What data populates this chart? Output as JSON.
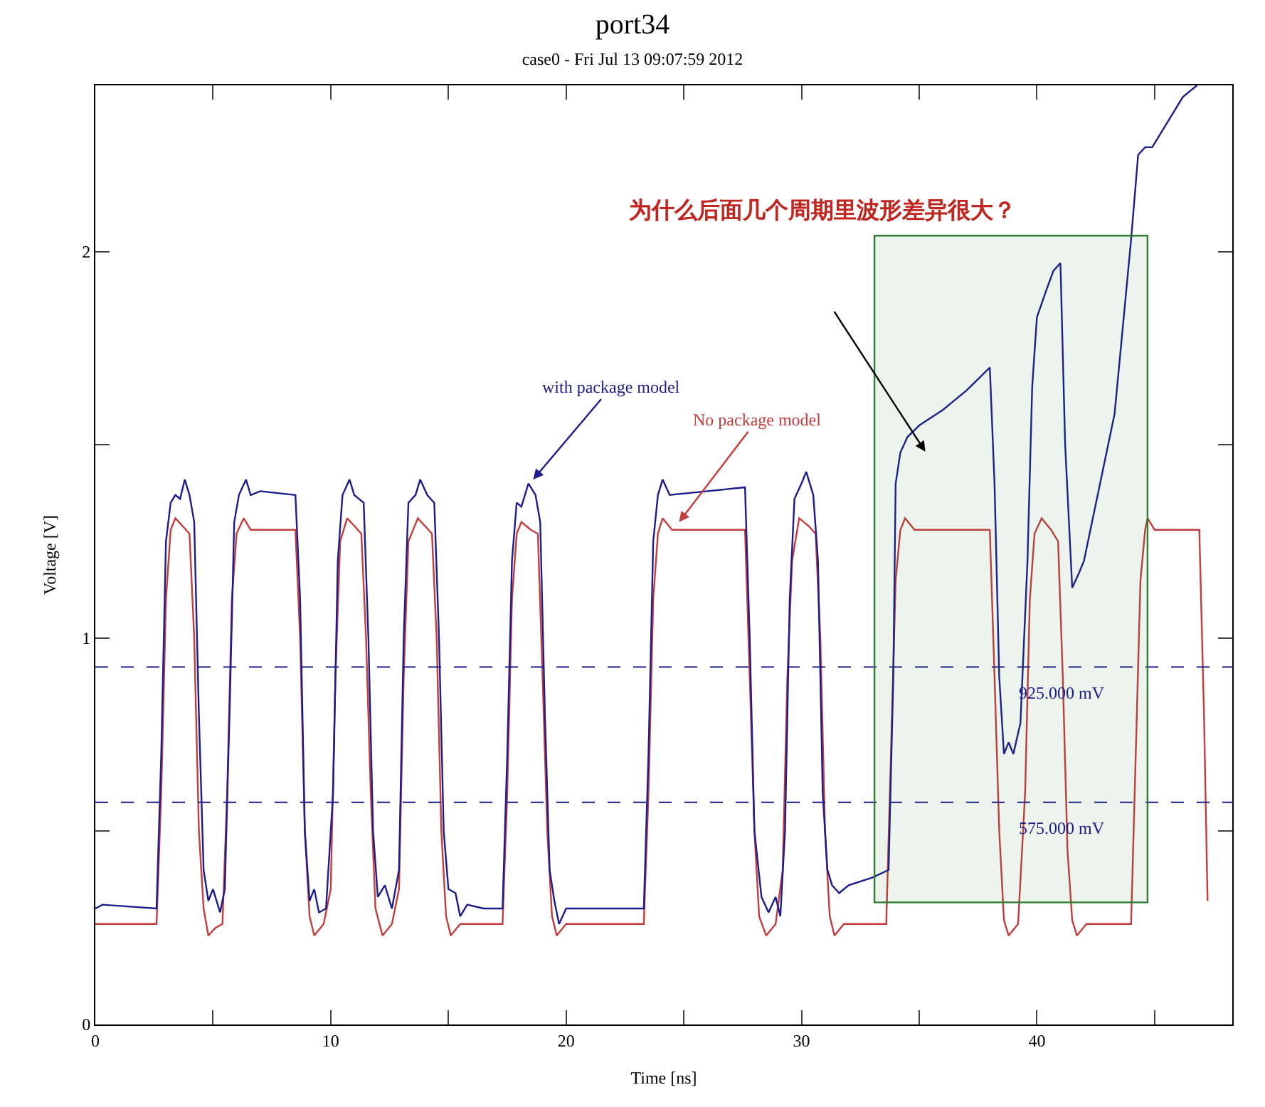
{
  "chart_data": {
    "type": "line",
    "title": "port34",
    "subtitle": "case0 - Fri Jul 13 09:07:59 2012",
    "xlabel": "Time [ns]",
    "ylabel": "Voltage [V]",
    "xlim": [
      0,
      48.3
    ],
    "ylim": [
      0,
      2.43
    ],
    "xticks": [
      0,
      {
        "value": 5,
        "label": null
      },
      10,
      {
        "value": 15,
        "label": null
      },
      20,
      {
        "value": 25,
        "label": null
      },
      30,
      {
        "value": 35,
        "label": null
      },
      40,
      {
        "value": 45,
        "label": null
      }
    ],
    "yticks": [
      0,
      {
        "value": 0.5,
        "label": null
      },
      1,
      {
        "value": 1.5,
        "label": null
      },
      2
    ],
    "marker": "none",
    "line_style": "solid",
    "series": [
      {
        "color": "#c43c3c",
        "x": [
          0,
          2.6,
          2.8,
          3.0,
          3.2,
          3.4,
          3.7,
          4.0,
          4.2,
          4.4,
          4.6,
          4.8,
          5.1,
          5.4,
          5.6,
          5.8,
          6.0,
          6.3,
          6.6,
          8.5,
          8.7,
          8.9,
          9.1,
          9.3,
          9.7,
          10.0,
          10.2,
          10.4,
          10.7,
          11.0,
          11.3,
          11.5,
          11.7,
          11.9,
          12.2,
          12.6,
          12.9,
          13.1,
          13.3,
          13.7,
          14.0,
          14.3,
          14.5,
          14.7,
          14.9,
          15.1,
          15.5,
          17.3,
          17.5,
          17.7,
          17.9,
          18.1,
          18.5,
          18.8,
          19.0,
          19.2,
          19.4,
          19.6,
          20.0,
          23.3,
          23.5,
          23.7,
          23.9,
          24.1,
          24.5,
          27.6,
          27.8,
          28.0,
          28.2,
          28.5,
          28.9,
          29.2,
          29.4,
          29.6,
          29.9,
          30.3,
          30.6,
          30.8,
          31.0,
          31.2,
          31.4,
          31.8,
          33.6,
          33.8,
          34.0,
          34.2,
          34.4,
          34.8,
          38.0,
          38.2,
          38.4,
          38.6,
          38.8,
          39.2,
          39.5,
          39.7,
          39.9,
          40.2,
          40.6,
          40.9,
          41.1,
          41.3,
          41.5,
          41.7,
          42.1,
          44.0,
          44.2,
          44.4,
          44.6,
          44.7,
          45.0,
          46.9,
          47.1,
          47.25
        ],
        "values": [
          0.26,
          0.26,
          0.6,
          1.1,
          1.28,
          1.31,
          1.29,
          1.27,
          1.0,
          0.5,
          0.3,
          0.23,
          0.25,
          0.26,
          0.6,
          1.1,
          1.27,
          1.31,
          1.28,
          1.28,
          1.0,
          0.5,
          0.28,
          0.23,
          0.26,
          0.35,
          0.9,
          1.25,
          1.31,
          1.29,
          1.27,
          1.0,
          0.6,
          0.3,
          0.23,
          0.26,
          0.35,
          0.9,
          1.25,
          1.31,
          1.29,
          1.27,
          1.0,
          0.5,
          0.28,
          0.23,
          0.26,
          0.26,
          0.6,
          1.1,
          1.27,
          1.3,
          1.28,
          1.27,
          0.9,
          0.5,
          0.28,
          0.23,
          0.26,
          0.26,
          0.6,
          1.1,
          1.27,
          1.31,
          1.28,
          1.28,
          0.9,
          0.5,
          0.28,
          0.23,
          0.26,
          0.4,
          0.9,
          1.2,
          1.31,
          1.29,
          1.27,
          1.0,
          0.5,
          0.28,
          0.23,
          0.26,
          0.26,
          0.7,
          1.15,
          1.28,
          1.31,
          1.28,
          1.28,
          0.9,
          0.5,
          0.27,
          0.23,
          0.26,
          0.6,
          1.1,
          1.27,
          1.31,
          1.28,
          1.25,
          0.9,
          0.45,
          0.27,
          0.23,
          0.26,
          0.26,
          0.7,
          1.15,
          1.28,
          1.31,
          1.28,
          1.28,
          0.8,
          0.32
        ]
      },
      {
        "color": "#1c1c8c",
        "x": [
          0,
          0.3,
          2.6,
          2.8,
          3.0,
          3.2,
          3.4,
          3.6,
          3.8,
          4.0,
          4.2,
          4.4,
          4.6,
          4.8,
          5.0,
          5.3,
          5.5,
          5.7,
          5.9,
          6.1,
          6.4,
          6.6,
          7.0,
          8.5,
          8.7,
          8.9,
          9.1,
          9.3,
          9.5,
          9.8,
          10.1,
          10.3,
          10.5,
          10.8,
          11.0,
          11.4,
          11.6,
          11.8,
          12.0,
          12.3,
          12.6,
          12.9,
          13.1,
          13.3,
          13.6,
          13.8,
          14.1,
          14.4,
          14.6,
          14.8,
          15.0,
          15.3,
          15.5,
          15.8,
          16.5,
          17.3,
          17.5,
          17.7,
          17.9,
          18.1,
          18.4,
          18.7,
          18.9,
          19.1,
          19.3,
          19.5,
          19.7,
          20.0,
          23.3,
          23.5,
          23.7,
          23.9,
          24.1,
          24.4,
          26.0,
          27.6,
          27.8,
          28.0,
          28.3,
          28.6,
          28.9,
          29.1,
          29.3,
          29.5,
          29.7,
          30.0,
          30.2,
          30.5,
          30.7,
          30.9,
          31.1,
          31.3,
          31.6,
          32.0,
          33.0,
          33.7,
          33.9,
          34.0,
          34.2,
          34.5,
          35.0,
          36.0,
          37.0,
          38.0,
          38.2,
          38.4,
          38.6,
          38.8,
          39.0,
          39.3,
          39.6,
          39.8,
          40.0,
          40.4,
          40.7,
          41.0,
          41.2,
          41.5,
          41.8,
          42.0,
          43.3,
          44.0,
          44.3,
          44.6,
          44.9,
          45.2,
          45.6,
          46.2,
          46.8
        ],
        "values": [
          0.3,
          0.31,
          0.3,
          0.7,
          1.25,
          1.35,
          1.37,
          1.36,
          1.41,
          1.37,
          1.3,
          0.8,
          0.4,
          0.32,
          0.35,
          0.29,
          0.35,
          0.8,
          1.3,
          1.37,
          1.41,
          1.37,
          1.38,
          1.37,
          1.1,
          0.5,
          0.32,
          0.35,
          0.29,
          0.3,
          0.6,
          1.2,
          1.37,
          1.41,
          1.37,
          1.35,
          1.0,
          0.5,
          0.33,
          0.36,
          0.3,
          0.4,
          1.0,
          1.35,
          1.37,
          1.41,
          1.37,
          1.35,
          1.0,
          0.5,
          0.35,
          0.34,
          0.28,
          0.31,
          0.3,
          0.3,
          0.7,
          1.2,
          1.35,
          1.34,
          1.4,
          1.37,
          1.3,
          0.8,
          0.4,
          0.32,
          0.26,
          0.3,
          0.3,
          0.7,
          1.25,
          1.37,
          1.41,
          1.37,
          1.38,
          1.39,
          1.0,
          0.5,
          0.33,
          0.29,
          0.33,
          0.28,
          0.5,
          1.1,
          1.36,
          1.4,
          1.43,
          1.37,
          1.2,
          0.6,
          0.4,
          0.36,
          0.34,
          0.36,
          0.38,
          0.4,
          0.9,
          1.4,
          1.48,
          1.52,
          1.55,
          1.59,
          1.64,
          1.7,
          1.4,
          0.9,
          0.7,
          0.73,
          0.7,
          0.78,
          1.2,
          1.65,
          1.83,
          1.9,
          1.95,
          1.97,
          1.5,
          1.13,
          1.17,
          1.2,
          1.58,
          2.03,
          2.25,
          2.27,
          2.27,
          2.3,
          2.34,
          2.4,
          2.43
        ]
      }
    ],
    "ref_lines": [
      {
        "axis": "y",
        "value": 0.925,
        "label": "925.000 mV",
        "color": "#1c1c8c",
        "line_style": "dashed"
      },
      {
        "axis": "y",
        "value": 0.575,
        "label": "575.000 mV",
        "color": "#1c1c8c",
        "line_style": "dashed"
      }
    ],
    "bands": [
      {
        "axis": "x",
        "from": 33.1,
        "to": 44.7,
        "color": "#2e7d32"
      }
    ],
    "annotations": [
      {
        "text": "with package model",
        "x": 18.6,
        "y": 1.41
      },
      {
        "text": "No package model",
        "x": 24.8,
        "y": 1.3
      },
      "为什么后面几个周期里波形差异很大？"
    ]
  }
}
